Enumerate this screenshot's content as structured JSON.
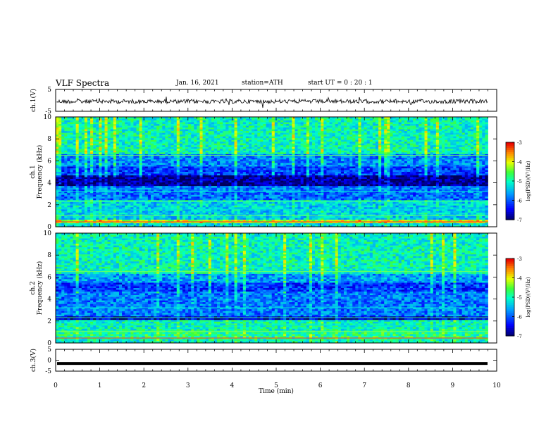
{
  "header": {
    "title": "VLF Spectra",
    "date": "Jan. 16, 2021",
    "station": "station=ATH",
    "start": "start UT =  0 : 20 : 1"
  },
  "chart_data": [
    {
      "type": "line",
      "panel": "ch1-waveform",
      "ylabel": "ch.1(V)",
      "ylim": [
        -5,
        5
      ],
      "yticks": [
        "5",
        "-5"
      ],
      "xlim": [
        0,
        10
      ],
      "description_values": "noisy waveform around about -0.5 V with spikes"
    },
    {
      "type": "heatmap",
      "panel": "ch1-spectrogram",
      "ylabel": "ch.1\nFrequency (kHz)",
      "ylim": [
        0,
        10
      ],
      "yticks": [
        "0",
        "2",
        "4",
        "6",
        "8",
        "10"
      ],
      "xlim": [
        0,
        10
      ],
      "colorbar": {
        "label": "log(PSD)(V²/Hz)",
        "range": [
          -7,
          -3
        ],
        "ticks": [
          "-3",
          "-4",
          "-5",
          "-6",
          "-7"
        ]
      }
    },
    {
      "type": "heatmap",
      "panel": "ch2-spectrogram",
      "ylabel": "ch.2\nFrequency (kHz)",
      "ylim": [
        0,
        10
      ],
      "yticks": [
        "0",
        "2",
        "4",
        "6",
        "8",
        "10"
      ],
      "xlim": [
        0,
        10
      ],
      "colorbar": {
        "label": "log(PSD)(V²/Hz)",
        "range": [
          -7,
          -3
        ],
        "ticks": [
          "-3",
          "-4",
          "-5",
          "-6",
          "-7"
        ]
      }
    },
    {
      "type": "line",
      "panel": "ch3-waveform",
      "ylabel": "ch.3(V)",
      "ylim": [
        -5,
        5
      ],
      "yticks": [
        "5",
        "0",
        "-5"
      ],
      "xlim": [
        0,
        10
      ],
      "value": -1.5
    }
  ],
  "xaxis": {
    "label": "Time (min)",
    "ticks": [
      "0",
      "1",
      "2",
      "3",
      "4",
      "5",
      "6",
      "7",
      "8",
      "9",
      "10"
    ]
  }
}
